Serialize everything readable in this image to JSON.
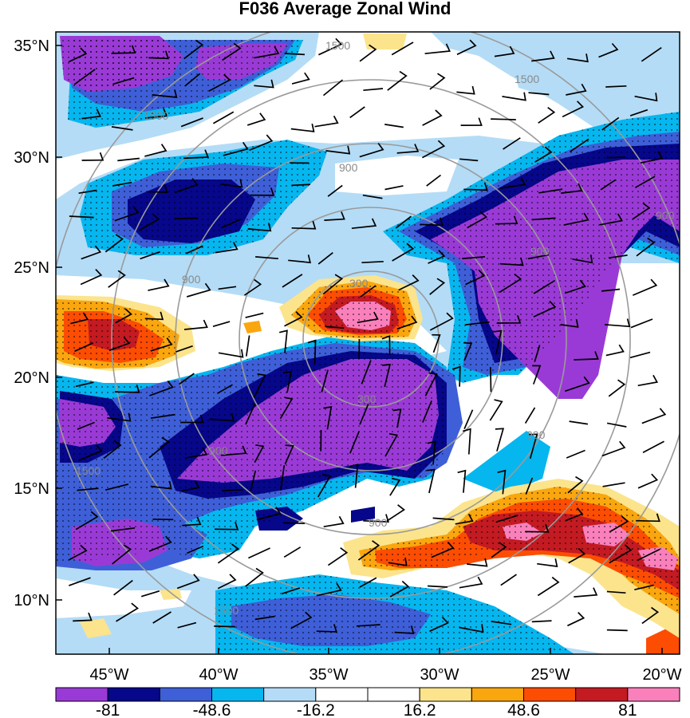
{
  "title": "F036 Average Zonal Wind",
  "lat_ticks": [
    "35°N",
    "30°N",
    "25°N",
    "20°N",
    "15°N",
    "10°N"
  ],
  "lon_ticks": [
    "45°W",
    "40°W",
    "35°W",
    "30°W",
    "25°W",
    "20°W"
  ],
  "colorbar": {
    "colors": [
      "#9a3ad6",
      "#06078a",
      "#3e5fd8",
      "#06b6ef",
      "#b4dcf6",
      "#ffffff",
      "#ffffff",
      "#fbe48c",
      "#faa60e",
      "#fc4d03",
      "#c41a22",
      "#fa80bc"
    ],
    "labels": [
      "-81",
      "-48.6",
      "-16.2",
      "16.2",
      "48.6",
      "81"
    ]
  },
  "contour_labels": [
    "1500",
    "1500",
    "1500",
    "1500",
    "1500",
    "900",
    "900",
    "900",
    "900",
    "900",
    "900",
    "900",
    "300",
    "300"
  ],
  "colors": {
    "purple": "#9a3ad6",
    "navy": "#06078a",
    "blue": "#3e5fd8",
    "cyan": "#06b6ef",
    "lightblue": "#b4dcf6",
    "yellow": "#fbe48c",
    "orange": "#faa60e",
    "redorange": "#fc4d03",
    "red": "#c41a22",
    "pink": "#fa80bc",
    "ring": "#9a9a9a"
  }
}
